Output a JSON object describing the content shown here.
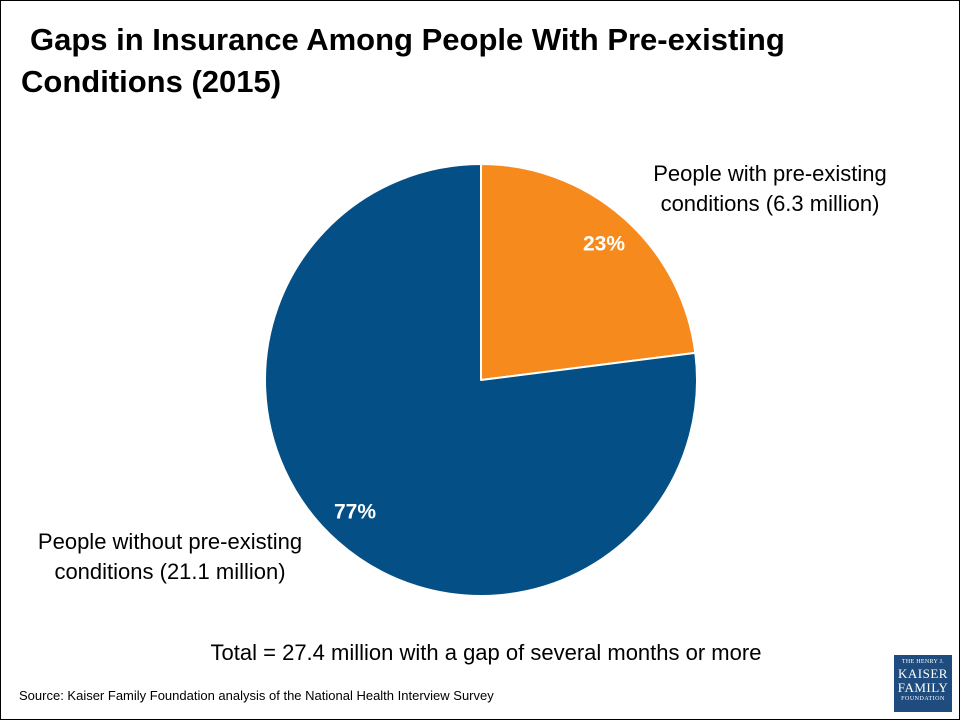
{
  "title": {
    "line1": "Gaps in Insurance Among People With Pre-existing",
    "line2": "Conditions (2015)"
  },
  "chart_data": {
    "type": "pie",
    "title": "Gaps in Insurance Among People With Pre-existing Conditions (2015)",
    "slices": [
      {
        "label_line1": "People with pre-existing",
        "label_line2": "conditions (6.3 million)",
        "value": 6.3,
        "percent": 23,
        "percent_label": "23%",
        "color": "#f78a1d"
      },
      {
        "label_line1": "People without pre-existing",
        "label_line2": "conditions (21.1 million)",
        "value": 21.1,
        "percent": 77,
        "percent_label": "77%",
        "color": "#034f86"
      }
    ]
  },
  "total_note": "Total = 27.4 million with a gap of several months or more",
  "source": "Source: Kaiser Family Foundation analysis of the National Health Interview Survey",
  "logo": {
    "line1": "THE HENRY J.",
    "line2": "KAISER",
    "line3": "FAMILY",
    "line4": "FOUNDATION"
  }
}
